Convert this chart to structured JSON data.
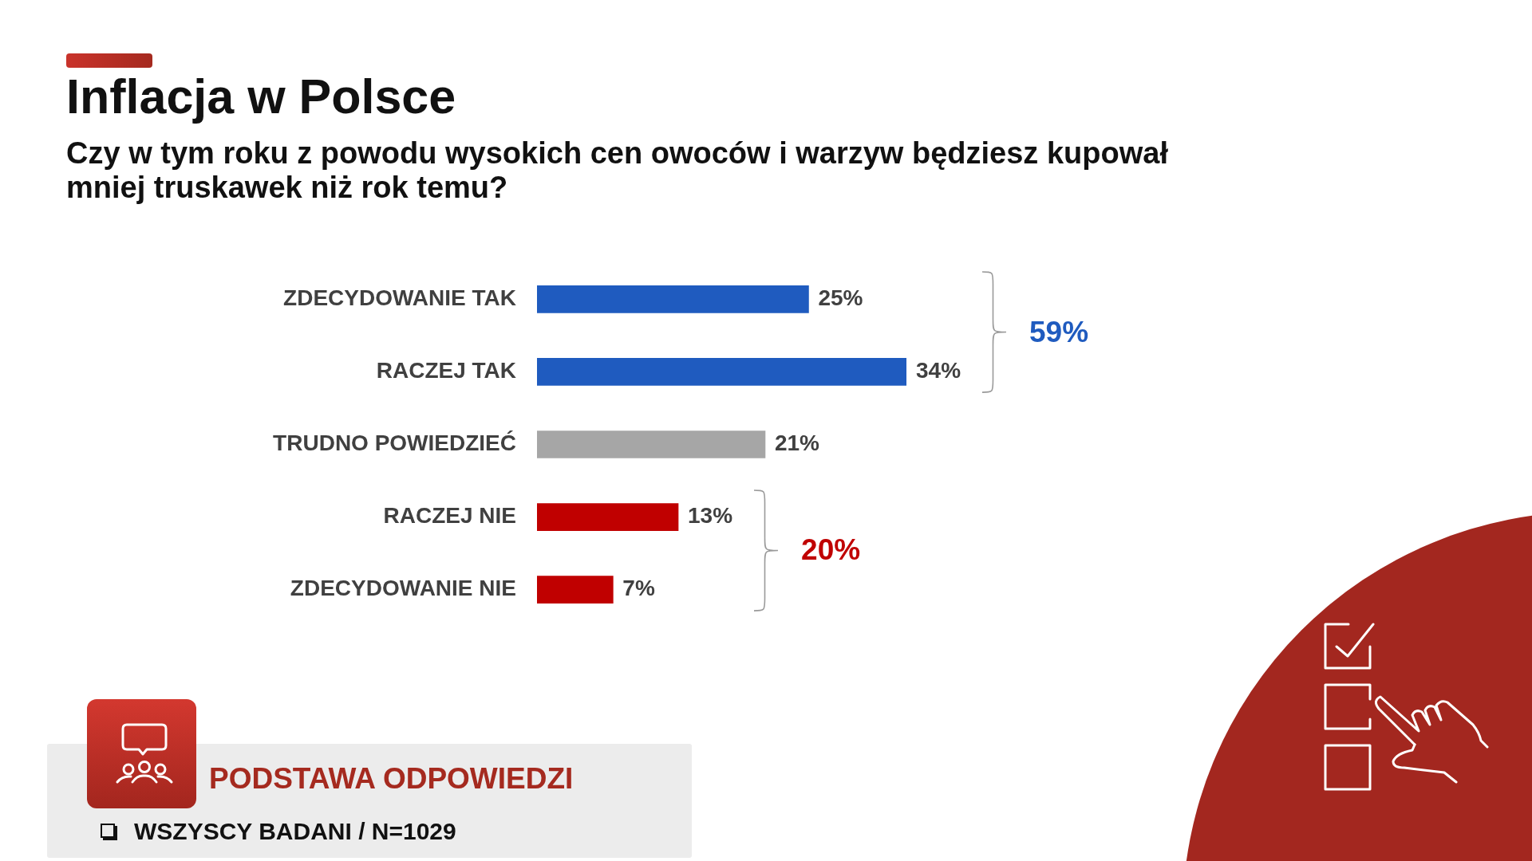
{
  "chart_data": {
    "type": "bar",
    "title": "Inflacja w Polsce",
    "subtitle": "Czy w tym roku z powodu wysokich cen owoców i warzyw będziesz kupował mniej truskawek niż rok temu?",
    "categories": [
      "ZDECYDOWANIE TAK",
      "RACZEJ TAK",
      "TRUDNO POWIEDZIEĆ",
      "RACZEJ NIE",
      "ZDECYDOWANIE NIE"
    ],
    "values": [
      25,
      34,
      21,
      13,
      7
    ],
    "colors": [
      "#1f5bbf",
      "#1f5bbf",
      "#a6a6a6",
      "#c00000",
      "#c00000"
    ],
    "value_labels": [
      "25%",
      "34%",
      "21%",
      "13%",
      "7%"
    ],
    "orientation": "horizontal",
    "tick_labels": "y",
    "annotations": [
      "59%",
      "20%",
      "PODSTAWA ODPOWIEDZI",
      "WSZYSCY BADANI / N=1029"
    ]
  }
}
